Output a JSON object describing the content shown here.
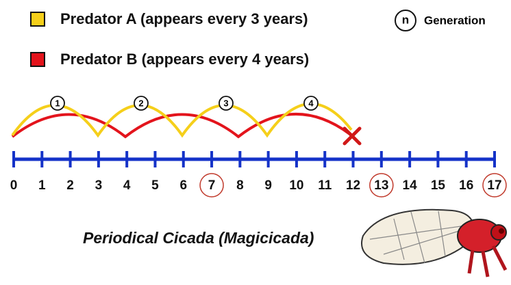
{
  "legend": [
    {
      "label": "Predator A (appears every 3 years)",
      "color": "#f5cf1a"
    },
    {
      "label": "Predator B (appears every 4 years)",
      "color": "#e3141c"
    }
  ],
  "generation_key": {
    "symbol": "n",
    "label": "Generation"
  },
  "generations": [
    "1",
    "2",
    "3",
    "4"
  ],
  "number_line": {
    "color": "#1432c8",
    "ticks": [
      {
        "label": "0",
        "circled": false
      },
      {
        "label": "1",
        "circled": false
      },
      {
        "label": "2",
        "circled": false
      },
      {
        "label": "3",
        "circled": false
      },
      {
        "label": "4",
        "circled": false
      },
      {
        "label": "5",
        "circled": false
      },
      {
        "label": "6",
        "circled": false
      },
      {
        "label": "7",
        "circled": true
      },
      {
        "label": "8",
        "circled": false
      },
      {
        "label": "9",
        "circled": false
      },
      {
        "label": "10",
        "circled": false
      },
      {
        "label": "11",
        "circled": false
      },
      {
        "label": "12",
        "circled": false
      },
      {
        "label": "13",
        "circled": true
      },
      {
        "label": "14",
        "circled": false
      },
      {
        "label": "15",
        "circled": false
      },
      {
        "label": "16",
        "circled": false
      },
      {
        "label": "17",
        "circled": true
      }
    ]
  },
  "caption": "Periodical Cicada (Magicicada)"
}
